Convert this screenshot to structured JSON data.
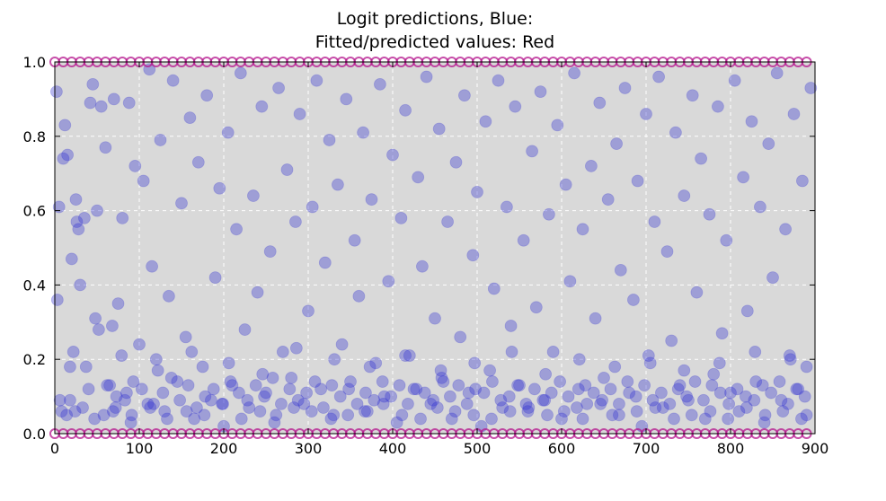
{
  "chart_data": {
    "type": "scatter",
    "title_lines": [
      "Logit predictions, Blue:",
      "Fitted/predicted values: Red"
    ],
    "xlabel": "",
    "ylabel": "",
    "xlim": [
      0,
      900
    ],
    "ylim": [
      0,
      1.0
    ],
    "xticks": [
      0,
      100,
      200,
      300,
      400,
      500,
      600,
      700,
      800,
      900
    ],
    "yticks": [
      0.0,
      0.2,
      0.4,
      0.6,
      0.8,
      1.0
    ],
    "grid": true,
    "legend": "none",
    "colors": {
      "background": "#d9d9d9",
      "blue": "#3232d2",
      "red_edge": "#b4148c"
    },
    "series": [
      {
        "color": "blue",
        "x": [
          2,
          5,
          8,
          12,
          15,
          18,
          20,
          22,
          25,
          28,
          30,
          35,
          40,
          45,
          48,
          50,
          55,
          58,
          60,
          65,
          68,
          70,
          72,
          75,
          80,
          85,
          88,
          90,
          95,
          100,
          105,
          110,
          112,
          115,
          120,
          125,
          130,
          135,
          140,
          145,
          150,
          155,
          160,
          165,
          170,
          175,
          180,
          185,
          190,
          195,
          200,
          205,
          210,
          215,
          220,
          225,
          230,
          235,
          240,
          245,
          250,
          255,
          260,
          265,
          270,
          275,
          280,
          285,
          290,
          295,
          300,
          305,
          310,
          315,
          320,
          325,
          330,
          335,
          340,
          345,
          350,
          355,
          360,
          365,
          370,
          375,
          380,
          385,
          390,
          395,
          400,
          405,
          410,
          415,
          420,
          425,
          430,
          435,
          440,
          445,
          450,
          455,
          460,
          465,
          470,
          475,
          480,
          485,
          490,
          495,
          500,
          505,
          510,
          515,
          520,
          525,
          530,
          535,
          540,
          545,
          550,
          555,
          560,
          565,
          570,
          575,
          580,
          585,
          590,
          595,
          600,
          605,
          610,
          615,
          620,
          625,
          630,
          635,
          640,
          645,
          650,
          655,
          660,
          665,
          670,
          675,
          680,
          685,
          690,
          695,
          700,
          705,
          710,
          715,
          720,
          725,
          730,
          735,
          740,
          745,
          750,
          755,
          760,
          765,
          770,
          775,
          780,
          785,
          790,
          795,
          800,
          805,
          810,
          815,
          820,
          825,
          830,
          835,
          840,
          845,
          850,
          855,
          860,
          865,
          870,
          875,
          880,
          885,
          890,
          895,
          3,
          10,
          18,
          26,
          33,
          42,
          52,
          62,
          73,
          83,
          93,
          103,
          117,
          128,
          138,
          148,
          158,
          168,
          178,
          188,
          198,
          208,
          218,
          228,
          238,
          248,
          258,
          268,
          278,
          288,
          298,
          308,
          318,
          328,
          338,
          348,
          358,
          368,
          378,
          388,
          398,
          408,
          418,
          428,
          438,
          448,
          458,
          468,
          478,
          488,
          498,
          508,
          518,
          528,
          538,
          548,
          558,
          568,
          578,
          588,
          598,
          608,
          618,
          628,
          638,
          648,
          658,
          668,
          678,
          688,
          698,
          708,
          718,
          728,
          738,
          748,
          758,
          768,
          778,
          788,
          798,
          808,
          818,
          828,
          838,
          848,
          858,
          868,
          878,
          888,
          6,
          24,
          47,
          69,
          91,
          113,
          133,
          156,
          177,
          199,
          221,
          243,
          262,
          283,
          304,
          327,
          347,
          367,
          389,
          411,
          433,
          453,
          474,
          496,
          517,
          539,
          561,
          583,
          603,
          625,
          646,
          668,
          689,
          711,
          733,
          754,
          776,
          797,
          819,
          841,
          862,
          884,
          14,
          37,
          79,
          122,
          162,
          206,
          246,
          286,
          331,
          373,
          415,
          457,
          497,
          541,
          581,
          621,
          663,
          703,
          745,
          787,
          829,
          871,
          890
        ],
        "y": [
          0.92,
          0.61,
          0.06,
          0.83,
          0.75,
          0.09,
          0.47,
          0.22,
          0.63,
          0.55,
          0.4,
          0.58,
          0.12,
          0.94,
          0.31,
          0.6,
          0.88,
          0.05,
          0.77,
          0.13,
          0.29,
          0.9,
          0.07,
          0.35,
          0.58,
          0.11,
          0.89,
          0.03,
          0.72,
          0.24,
          0.68,
          0.08,
          0.98,
          0.45,
          0.2,
          0.79,
          0.06,
          0.37,
          0.95,
          0.14,
          0.62,
          0.26,
          0.85,
          0.04,
          0.73,
          0.18,
          0.91,
          0.09,
          0.42,
          0.66,
          0.02,
          0.81,
          0.13,
          0.55,
          0.97,
          0.28,
          0.07,
          0.64,
          0.38,
          0.88,
          0.11,
          0.49,
          0.03,
          0.93,
          0.22,
          0.71,
          0.15,
          0.57,
          0.86,
          0.08,
          0.33,
          0.61,
          0.95,
          0.12,
          0.46,
          0.79,
          0.05,
          0.67,
          0.24,
          0.9,
          0.14,
          0.52,
          0.37,
          0.81,
          0.06,
          0.63,
          0.19,
          0.94,
          0.1,
          0.41,
          0.75,
          0.03,
          0.58,
          0.87,
          0.21,
          0.12,
          0.69,
          0.45,
          0.96,
          0.08,
          0.31,
          0.82,
          0.14,
          0.57,
          0.04,
          0.73,
          0.26,
          0.91,
          0.11,
          0.48,
          0.65,
          0.02,
          0.84,
          0.17,
          0.39,
          0.95,
          0.07,
          0.61,
          0.29,
          0.88,
          0.13,
          0.52,
          0.06,
          0.76,
          0.34,
          0.92,
          0.09,
          0.59,
          0.22,
          0.83,
          0.04,
          0.67,
          0.41,
          0.97,
          0.12,
          0.55,
          0.08,
          0.72,
          0.31,
          0.89,
          0.15,
          0.63,
          0.05,
          0.78,
          0.44,
          0.93,
          0.11,
          0.36,
          0.68,
          0.02,
          0.86,
          0.19,
          0.57,
          0.96,
          0.07,
          0.49,
          0.25,
          0.81,
          0.13,
          0.64,
          0.09,
          0.91,
          0.38,
          0.74,
          0.04,
          0.59,
          0.16,
          0.88,
          0.27,
          0.52,
          0.11,
          0.95,
          0.06,
          0.69,
          0.33,
          0.84,
          0.14,
          0.61,
          0.03,
          0.78,
          0.42,
          0.97,
          0.09,
          0.55,
          0.21,
          0.86,
          0.12,
          0.68,
          0.05,
          0.93,
          0.36,
          0.74,
          0.18,
          0.57,
          0.07,
          0.89,
          0.28,
          0.13,
          0.1,
          0.09,
          0.14,
          0.12,
          0.08,
          0.11,
          0.15,
          0.09,
          0.13,
          0.07,
          0.1,
          0.12,
          0.08,
          0.14,
          0.11,
          0.09,
          0.13,
          0.1,
          0.15,
          0.08,
          0.12,
          0.09,
          0.11,
          0.14,
          0.07,
          0.13,
          0.1,
          0.12,
          0.08,
          0.11,
          0.09,
          0.14,
          0.1,
          0.13,
          0.08,
          0.12,
          0.11,
          0.09,
          0.15,
          0.1,
          0.13,
          0.08,
          0.12,
          0.11,
          0.14,
          0.09,
          0.1,
          0.13,
          0.08,
          0.12,
          0.09,
          0.11,
          0.14,
          0.1,
          0.07,
          0.13,
          0.11,
          0.09,
          0.12,
          0.08,
          0.14,
          0.1,
          0.13,
          0.09,
          0.11,
          0.08,
          0.12,
          0.1,
          0.14,
          0.09,
          0.13,
          0.11,
          0.08,
          0.12,
          0.1,
          0.09,
          0.13,
          0.11,
          0.14,
          0.08,
          0.12,
          0.1,
          0.09,
          0.06,
          0.04,
          0.06,
          0.05,
          0.07,
          0.04,
          0.06,
          0.05,
          0.08,
          0.04,
          0.06,
          0.05,
          0.07,
          0.06,
          0.04,
          0.05,
          0.06,
          0.08,
          0.05,
          0.04,
          0.07,
          0.06,
          0.05,
          0.04,
          0.06,
          0.07,
          0.05,
          0.06,
          0.04,
          0.08,
          0.05,
          0.06,
          0.07,
          0.04,
          0.05,
          0.06,
          0.04,
          0.07,
          0.05,
          0.06,
          0.04,
          0.05,
          0.18,
          0.21,
          0.17,
          0.22,
          0.19,
          0.16,
          0.23,
          0.2,
          0.18,
          0.21,
          0.17,
          0.19,
          0.22,
          0.16,
          0.2,
          0.18,
          0.21,
          0.17,
          0.19,
          0.22,
          0.2,
          0.18
        ]
      },
      {
        "color": "red",
        "x": [
          0,
          10,
          20,
          30,
          40,
          50,
          60,
          70,
          80,
          90,
          100,
          110,
          120,
          130,
          140,
          150,
          160,
          170,
          180,
          190,
          200,
          210,
          220,
          230,
          240,
          250,
          260,
          270,
          280,
          290,
          300,
          310,
          320,
          330,
          340,
          350,
          360,
          370,
          380,
          390,
          400,
          410,
          420,
          430,
          440,
          450,
          460,
          470,
          480,
          490,
          500,
          510,
          520,
          530,
          540,
          550,
          560,
          570,
          580,
          590,
          600,
          610,
          620,
          630,
          640,
          650,
          660,
          670,
          680,
          690,
          700,
          710,
          720,
          730,
          740,
          750,
          760,
          770,
          780,
          790,
          800,
          810,
          820,
          830,
          840,
          850,
          860,
          870,
          880,
          890,
          0,
          10,
          20,
          30,
          40,
          50,
          60,
          70,
          80,
          90,
          100,
          110,
          120,
          130,
          140,
          150,
          160,
          170,
          180,
          190,
          200,
          210,
          220,
          230,
          240,
          250,
          260,
          270,
          280,
          290,
          300,
          310,
          320,
          330,
          340,
          350,
          360,
          370,
          380,
          390,
          400,
          410,
          420,
          430,
          440,
          450,
          460,
          470,
          480,
          490,
          500,
          510,
          520,
          530,
          540,
          550,
          560,
          570,
          580,
          590,
          600,
          610,
          620,
          630,
          640,
          650,
          660,
          670,
          680,
          690,
          700,
          710,
          720,
          730,
          740,
          750,
          760,
          770,
          780,
          790,
          800,
          810,
          820,
          830,
          840,
          850,
          860,
          870,
          880,
          890
        ],
        "y": [
          1.0,
          1.0,
          1.0,
          1.0,
          1.0,
          1.0,
          1.0,
          1.0,
          1.0,
          1.0,
          1.0,
          1.0,
          1.0,
          1.0,
          1.0,
          1.0,
          1.0,
          1.0,
          1.0,
          1.0,
          1.0,
          1.0,
          1.0,
          1.0,
          1.0,
          1.0,
          1.0,
          1.0,
          1.0,
          1.0,
          1.0,
          1.0,
          1.0,
          1.0,
          1.0,
          1.0,
          1.0,
          1.0,
          1.0,
          1.0,
          1.0,
          1.0,
          1.0,
          1.0,
          1.0,
          1.0,
          1.0,
          1.0,
          1.0,
          1.0,
          1.0,
          1.0,
          1.0,
          1.0,
          1.0,
          1.0,
          1.0,
          1.0,
          1.0,
          1.0,
          1.0,
          1.0,
          1.0,
          1.0,
          1.0,
          1.0,
          1.0,
          1.0,
          1.0,
          1.0,
          1.0,
          1.0,
          1.0,
          1.0,
          1.0,
          1.0,
          1.0,
          1.0,
          1.0,
          1.0,
          1.0,
          1.0,
          1.0,
          1.0,
          1.0,
          1.0,
          1.0,
          1.0,
          1.0,
          1.0,
          0.0,
          0.0,
          0.0,
          0.0,
          0.0,
          0.0,
          0.0,
          0.0,
          0.0,
          0.0,
          0.0,
          0.0,
          0.0,
          0.0,
          0.0,
          0.0,
          0.0,
          0.0,
          0.0,
          0.0,
          0.0,
          0.0,
          0.0,
          0.0,
          0.0,
          0.0,
          0.0,
          0.0,
          0.0,
          0.0,
          0.0,
          0.0,
          0.0,
          0.0,
          0.0,
          0.0,
          0.0,
          0.0,
          0.0,
          0.0,
          0.0,
          0.0,
          0.0,
          0.0,
          0.0,
          0.0,
          0.0,
          0.0,
          0.0,
          0.0,
          0.0,
          0.0,
          0.0,
          0.0,
          0.0,
          0.0,
          0.0,
          0.0,
          0.0,
          0.0,
          0.0,
          0.0,
          0.0,
          0.0,
          0.0,
          0.0,
          0.0,
          0.0,
          0.0,
          0.0,
          0.0,
          0.0,
          0.0,
          0.0,
          0.0,
          0.0,
          0.0,
          0.0,
          0.0,
          0.0,
          0.0,
          0.0,
          0.0,
          0.0,
          0.0,
          0.0,
          0.0,
          0.0,
          0.0,
          0.0
        ]
      }
    ]
  }
}
